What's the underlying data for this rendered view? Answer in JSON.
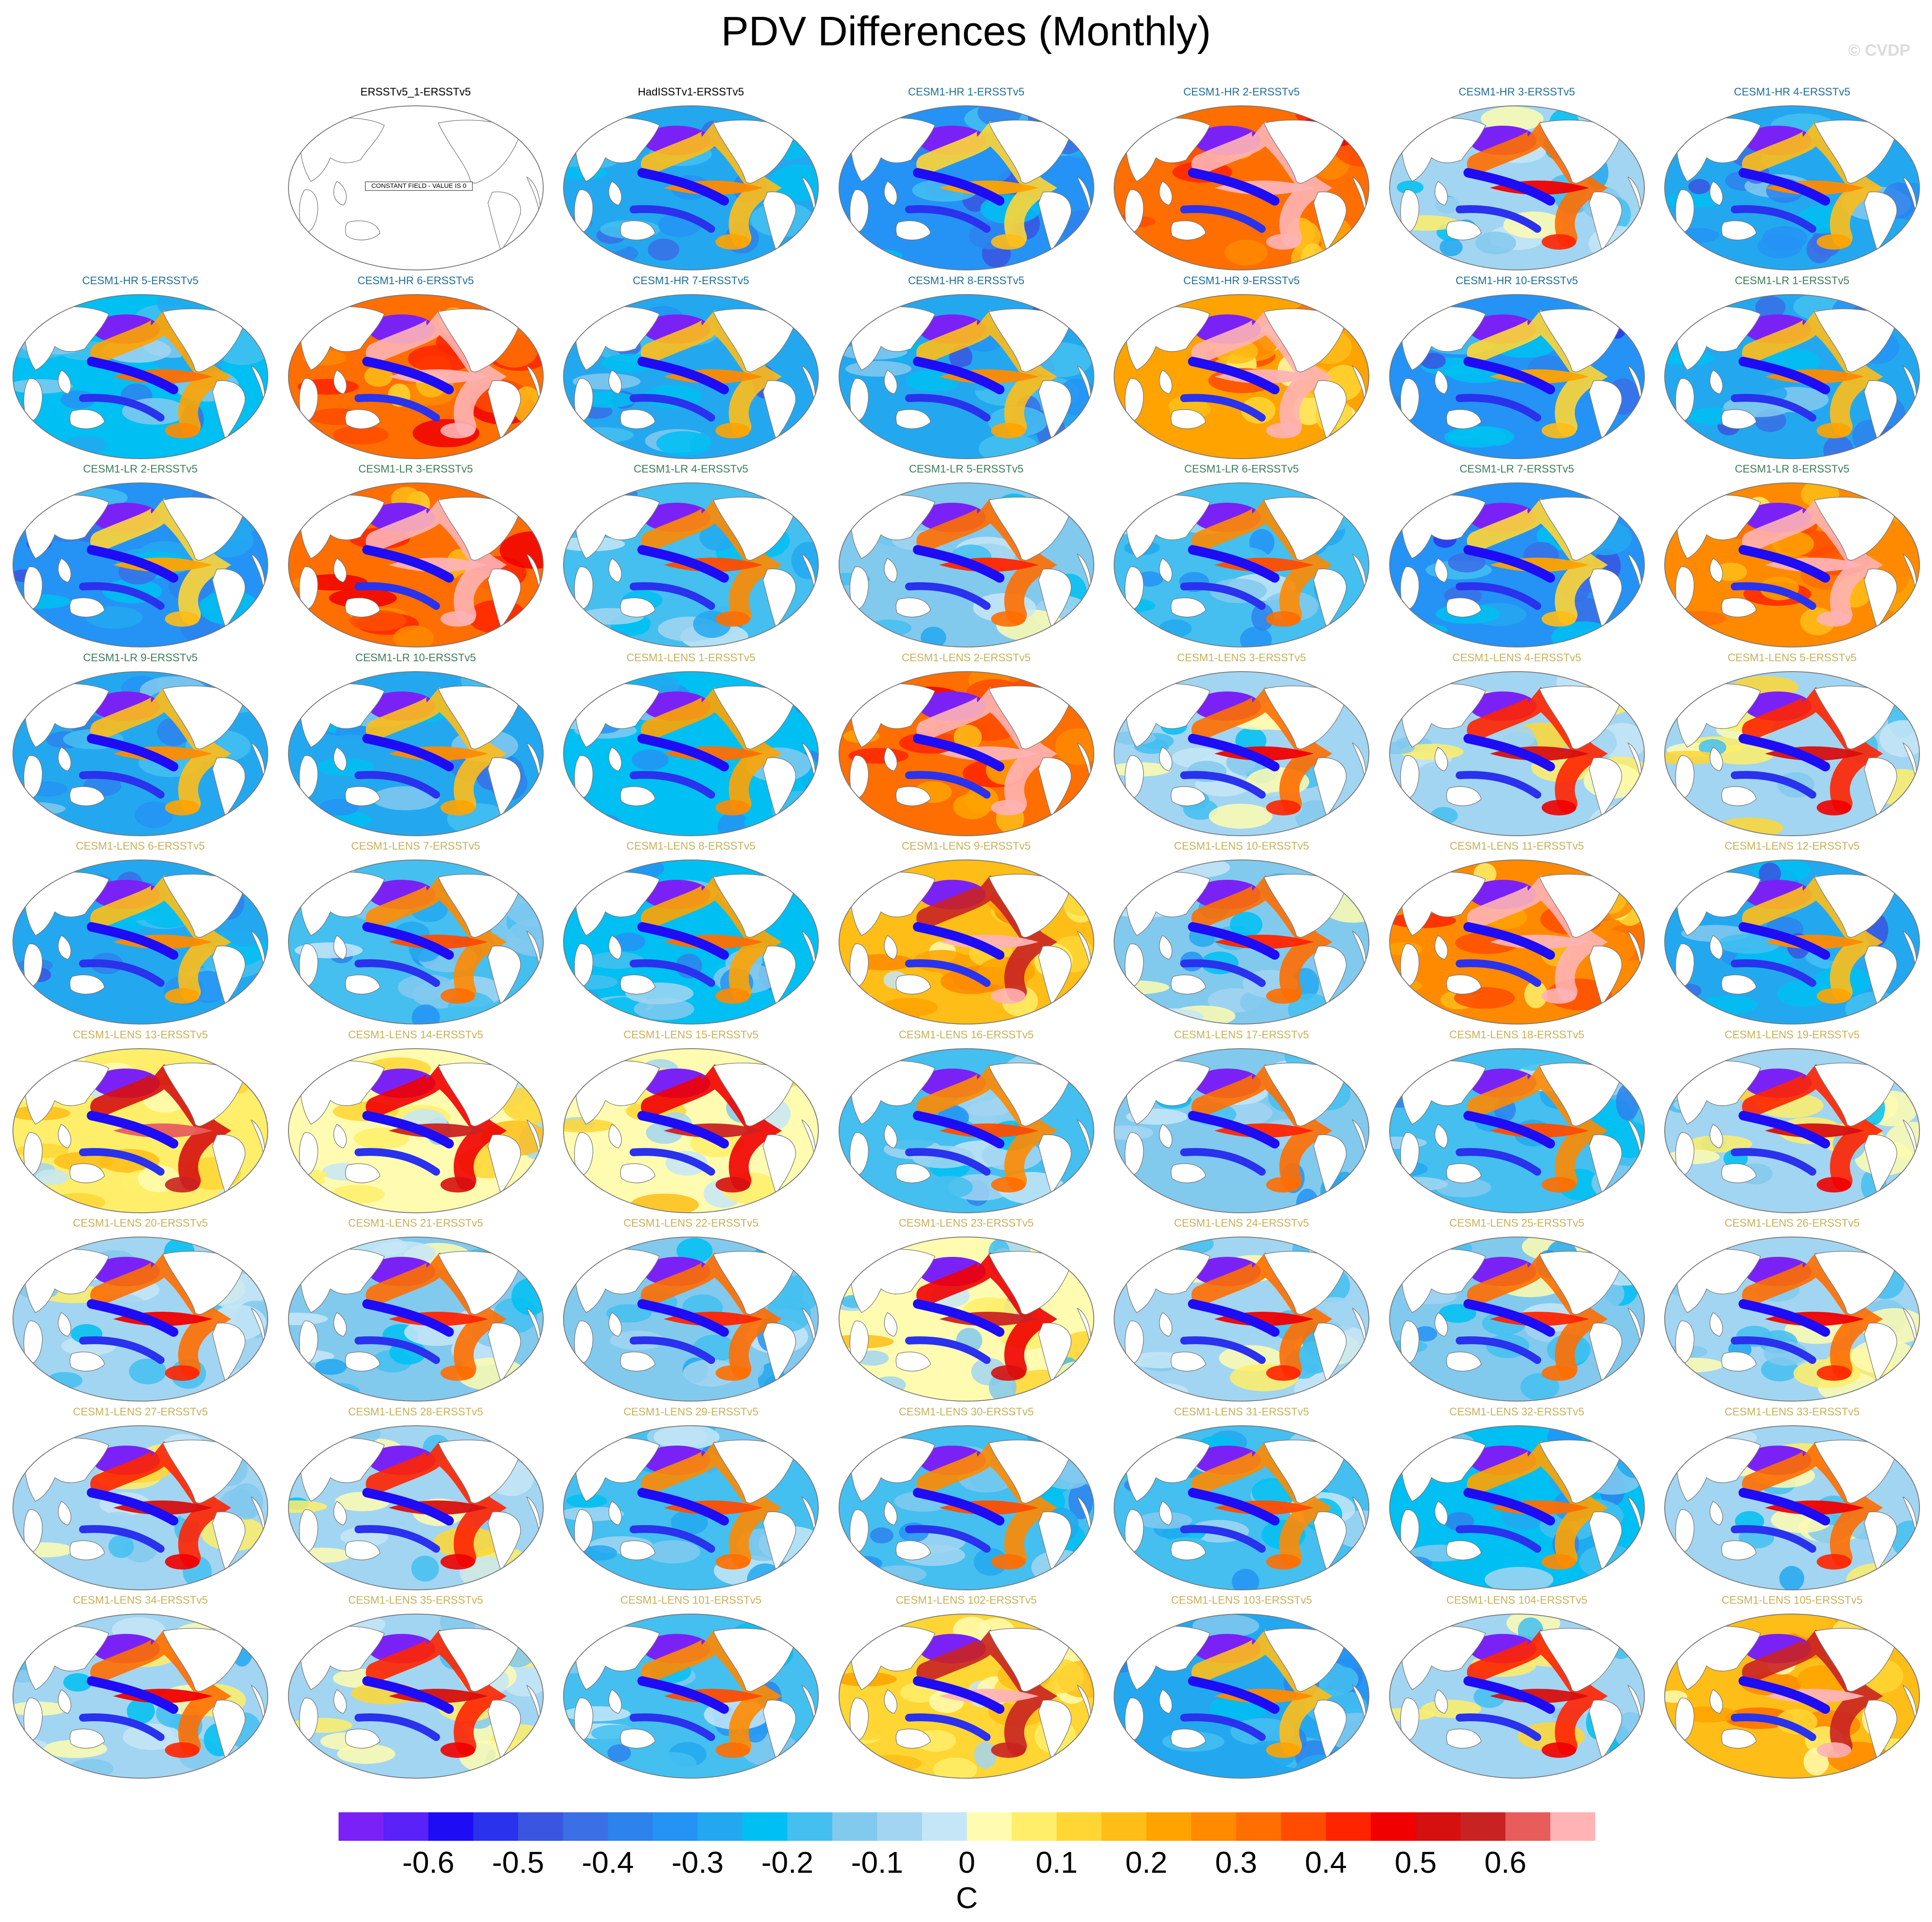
{
  "title": "PDV Differences (Monthly)",
  "watermark": "© CVDP",
  "colors": {
    "obs": "#000000",
    "cesm1_hr": "#1f6f9a",
    "cesm1_lr": "#3d7d5a",
    "cesm1_lens": "#c8b15a",
    "map_outline": "#777777",
    "land": "#ffffff"
  },
  "constant_field_label": "CONSTANT FIELD - VALUE IS 0",
  "panels": [
    {
      "label": "ERSSTv5_1-ERSSTv5",
      "group": "obs",
      "bias": 0,
      "constant": true
    },
    {
      "label": "HadISSTv1-ERSSTv5",
      "group": "obs",
      "bias": -0.3
    },
    {
      "label": "CESM1-HR 1-ERSSTv5",
      "group": "cesm1_hr",
      "bias": -0.35
    },
    {
      "label": "CESM1-HR 2-ERSSTv5",
      "group": "cesm1_hr",
      "bias": 0.3
    },
    {
      "label": "CESM1-HR 3-ERSSTv5",
      "group": "cesm1_hr",
      "bias": -0.1
    },
    {
      "label": "CESM1-HR 4-ERSSTv5",
      "group": "cesm1_hr",
      "bias": -0.3
    },
    {
      "label": "CESM1-HR 5-ERSSTv5",
      "group": "cesm1_hr",
      "bias": -0.25
    },
    {
      "label": "CESM1-HR 6-ERSSTv5",
      "group": "cesm1_hr",
      "bias": 0.3
    },
    {
      "label": "CESM1-HR 7-ERSSTv5",
      "group": "cesm1_hr",
      "bias": -0.3
    },
    {
      "label": "CESM1-HR 8-ERSSTv5",
      "group": "cesm1_hr",
      "bias": -0.3
    },
    {
      "label": "CESM1-HR 9-ERSSTv5",
      "group": "cesm1_hr",
      "bias": 0.2
    },
    {
      "label": "CESM1-HR 10-ERSSTv5",
      "group": "cesm1_hr",
      "bias": -0.35
    },
    {
      "label": "CESM1-LR 1-ERSSTv5",
      "group": "cesm1_lr",
      "bias": -0.3
    },
    {
      "label": "CESM1-LR 2-ERSSTv5",
      "group": "cesm1_lr",
      "bias": -0.35
    },
    {
      "label": "CESM1-LR 3-ERSSTv5",
      "group": "cesm1_lr",
      "bias": 0.3
    },
    {
      "label": "CESM1-LR 4-ERSSTv5",
      "group": "cesm1_lr",
      "bias": -0.2
    },
    {
      "label": "CESM1-LR 5-ERSSTv5",
      "group": "cesm1_lr",
      "bias": -0.15
    },
    {
      "label": "CESM1-LR 6-ERSSTv5",
      "group": "cesm1_lr",
      "bias": -0.2
    },
    {
      "label": "CESM1-LR 7-ERSSTv5",
      "group": "cesm1_lr",
      "bias": -0.35
    },
    {
      "label": "CESM1-LR 8-ERSSTv5",
      "group": "cesm1_lr",
      "bias": 0.25
    },
    {
      "label": "CESM1-LR 9-ERSSTv5",
      "group": "cesm1_lr",
      "bias": -0.3
    },
    {
      "label": "CESM1-LR 10-ERSSTv5",
      "group": "cesm1_lr",
      "bias": -0.3
    },
    {
      "label": "CESM1-LENS 1-ERSSTv5",
      "group": "cesm1_lens",
      "bias": -0.25
    },
    {
      "label": "CESM1-LENS 2-ERSSTv5",
      "group": "cesm1_lens",
      "bias": 0.3
    },
    {
      "label": "CESM1-LENS 3-ERSSTv5",
      "group": "cesm1_lens",
      "bias": -0.1
    },
    {
      "label": "CESM1-LENS 4-ERSSTv5",
      "group": "cesm1_lens",
      "bias": -0.05
    },
    {
      "label": "CESM1-LENS 5-ERSSTv5",
      "group": "cesm1_lens",
      "bias": -0.05
    },
    {
      "label": "CESM1-LENS 6-ERSSTv5",
      "group": "cesm1_lens",
      "bias": -0.3
    },
    {
      "label": "CESM1-LENS 7-ERSSTv5",
      "group": "cesm1_lens",
      "bias": -0.2
    },
    {
      "label": "CESM1-LENS 8-ERSSTv5",
      "group": "cesm1_lens",
      "bias": -0.25
    },
    {
      "label": "CESM1-LENS 9-ERSSTv5",
      "group": "cesm1_lens",
      "bias": 0.15
    },
    {
      "label": "CESM1-LENS 10-ERSSTv5",
      "group": "cesm1_lens",
      "bias": -0.15
    },
    {
      "label": "CESM1-LENS 11-ERSSTv5",
      "group": "cesm1_lens",
      "bias": 0.25
    },
    {
      "label": "CESM1-LENS 12-ERSSTv5",
      "group": "cesm1_lens",
      "bias": -0.3
    },
    {
      "label": "CESM1-LENS 13-ERSSTv5",
      "group": "cesm1_lens",
      "bias": 0.05
    },
    {
      "label": "CESM1-LENS 14-ERSSTv5",
      "group": "cesm1_lens",
      "bias": 0.0
    },
    {
      "label": "CESM1-LENS 15-ERSSTv5",
      "group": "cesm1_lens",
      "bias": 0.0
    },
    {
      "label": "CESM1-LENS 16-ERSSTv5",
      "group": "cesm1_lens",
      "bias": -0.2
    },
    {
      "label": "CESM1-LENS 17-ERSSTv5",
      "group": "cesm1_lens",
      "bias": -0.15
    },
    {
      "label": "CESM1-LENS 18-ERSSTv5",
      "group": "cesm1_lens",
      "bias": -0.2
    },
    {
      "label": "CESM1-LENS 19-ERSSTv5",
      "group": "cesm1_lens",
      "bias": -0.05
    },
    {
      "label": "CESM1-LENS 20-ERSSTv5",
      "group": "cesm1_lens",
      "bias": -0.1
    },
    {
      "label": "CESM1-LENS 21-ERSSTv5",
      "group": "cesm1_lens",
      "bias": -0.15
    },
    {
      "label": "CESM1-LENS 22-ERSSTv5",
      "group": "cesm1_lens",
      "bias": -0.15
    },
    {
      "label": "CESM1-LENS 23-ERSSTv5",
      "group": "cesm1_lens",
      "bias": 0.0
    },
    {
      "label": "CESM1-LENS 24-ERSSTv5",
      "group": "cesm1_lens",
      "bias": -0.1
    },
    {
      "label": "CESM1-LENS 25-ERSSTv5",
      "group": "cesm1_lens",
      "bias": -0.15
    },
    {
      "label": "CESM1-LENS 26-ERSSTv5",
      "group": "cesm1_lens",
      "bias": -0.1
    },
    {
      "label": "CESM1-LENS 27-ERSSTv5",
      "group": "cesm1_lens",
      "bias": -0.05
    },
    {
      "label": "CESM1-LENS 28-ERSSTv5",
      "group": "cesm1_lens",
      "bias": -0.05
    },
    {
      "label": "CESM1-LENS 29-ERSSTv5",
      "group": "cesm1_lens",
      "bias": -0.2
    },
    {
      "label": "CESM1-LENS 30-ERSSTv5",
      "group": "cesm1_lens",
      "bias": -0.2
    },
    {
      "label": "CESM1-LENS 31-ERSSTv5",
      "group": "cesm1_lens",
      "bias": -0.2
    },
    {
      "label": "CESM1-LENS 32-ERSSTv5",
      "group": "cesm1_lens",
      "bias": -0.25
    },
    {
      "label": "CESM1-LENS 33-ERSSTv5",
      "group": "cesm1_lens",
      "bias": -0.1
    },
    {
      "label": "CESM1-LENS 34-ERSSTv5",
      "group": "cesm1_lens",
      "bias": -0.1
    },
    {
      "label": "CESM1-LENS 35-ERSSTv5",
      "group": "cesm1_lens",
      "bias": -0.05
    },
    {
      "label": "CESM1-LENS 101-ERSSTv5",
      "group": "cesm1_lens",
      "bias": -0.2
    },
    {
      "label": "CESM1-LENS 102-ERSSTv5",
      "group": "cesm1_lens",
      "bias": 0.1
    },
    {
      "label": "CESM1-LENS 103-ERSSTv5",
      "group": "cesm1_lens",
      "bias": -0.3
    },
    {
      "label": "CESM1-LENS 104-ERSSTv5",
      "group": "cesm1_lens",
      "bias": -0.05
    },
    {
      "label": "CESM1-LENS 105-ERSSTv5",
      "group": "cesm1_lens",
      "bias": 0.15
    }
  ],
  "colorbar": {
    "label": "C",
    "bounds": [
      -0.7,
      0.7
    ],
    "colors": [
      "#7a22f5",
      "#5a21f8",
      "#1e0cf5",
      "#2a32ee",
      "#3a55e0",
      "#3a6fe6",
      "#2d82ec",
      "#2493f5",
      "#23a8f0",
      "#00bff2",
      "#44bff0",
      "#82c9ee",
      "#a2d5f1",
      "#c5e6f7",
      "#fffbb0",
      "#ffee6a",
      "#ffd634",
      "#ffbd17",
      "#ffa300",
      "#ff8a00",
      "#ff6e00",
      "#ff4c00",
      "#ff2400",
      "#f00000",
      "#d60f0f",
      "#c92222",
      "#e85c5c",
      "#ffb3b5"
    ],
    "ticks": [
      "-0.6",
      "-0.5",
      "-0.4",
      "-0.3",
      "-0.2",
      "-0.1",
      "0",
      "0.1",
      "0.2",
      "0.3",
      "0.4",
      "0.5",
      "0.6"
    ],
    "tick_values": [
      -0.6,
      -0.5,
      -0.4,
      -0.3,
      -0.2,
      -0.1,
      0,
      0.1,
      0.2,
      0.3,
      0.4,
      0.5,
      0.6
    ]
  }
}
